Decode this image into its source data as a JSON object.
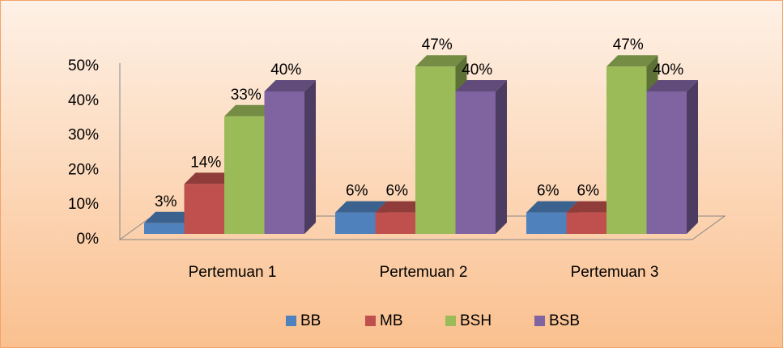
{
  "chart_data": {
    "type": "bar3d",
    "categories": [
      "Pertemuan 1",
      "Pertemuan 2",
      "Pertemuan 3"
    ],
    "series": [
      {
        "name": "BB",
        "color": "#4f81bd",
        "values": [
          3,
          6,
          6
        ],
        "value_labels": [
          "3%",
          "6%",
          "6%"
        ]
      },
      {
        "name": "MB",
        "color": "#c0504d",
        "values": [
          14,
          6,
          6
        ],
        "value_labels": [
          "14%",
          "6%",
          "6%"
        ]
      },
      {
        "name": "BSH",
        "color": "#9bbb59",
        "values": [
          33,
          47,
          47
        ],
        "value_labels": [
          "33%",
          "47%",
          "47%"
        ]
      },
      {
        "name": "BSB",
        "color": "#8064a2",
        "values": [
          40,
          40,
          40
        ],
        "value_labels": [
          "40%",
          "40%",
          "40%"
        ]
      }
    ],
    "ylim": [
      0,
      50
    ],
    "yticks": [
      {
        "value": 0,
        "label": "0%"
      },
      {
        "value": 10,
        "label": "10%"
      },
      {
        "value": 20,
        "label": "20%"
      },
      {
        "value": 30,
        "label": "30%"
      },
      {
        "value": 40,
        "label": "40%"
      },
      {
        "value": 50,
        "label": "50%"
      }
    ],
    "legend": "bottom",
    "grid": false
  }
}
